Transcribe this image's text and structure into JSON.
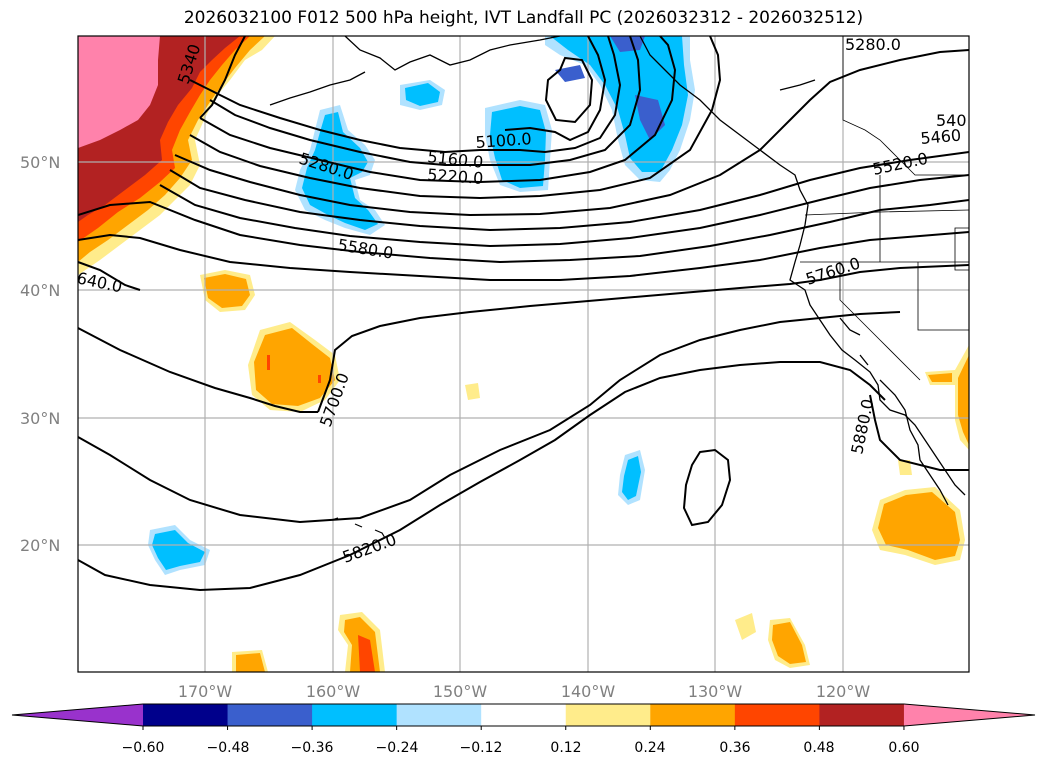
{
  "title": "2026032100 F012 500 hPa height, IVT Landfall PC (2026032312 - 2026032512)",
  "axes": {
    "lat_labels": [
      "50°N",
      "40°N",
      "30°N",
      "20°N"
    ],
    "lon_labels": [
      "170°W",
      "160°W",
      "150°W",
      "140°W",
      "130°W",
      "120°W"
    ]
  },
  "contour_labels": [
    "5280.0",
    "5340",
    "5100.0",
    "5160.0",
    "5220.0",
    "5280.0",
    "540",
    "5460",
    "5520.0",
    "5580.0",
    "640.0",
    "5760.0",
    "5700.0",
    "5880.0",
    "5820.0"
  ],
  "colorbar": {
    "ticks": [
      "−0.60",
      "−0.48",
      "−0.36",
      "−0.24",
      "−0.12",
      "0.12",
      "0.24",
      "0.36",
      "0.48",
      "0.60"
    ],
    "colors": [
      "#9932cc",
      "#00008b",
      "#3a5fcd",
      "#00bfff",
      "#b0e2ff",
      "#ffffff",
      "#ffec8b",
      "#ffa500",
      "#ff4500",
      "#b22222",
      "#ff82ab"
    ]
  },
  "colors": {
    "negative_strong": "#3a5fcd",
    "negative_mid": "#00bfff",
    "negative_weak": "#b0e2ff",
    "positive_weak": "#ffec8b",
    "positive_mid": "#ffa500",
    "positive_high": "#ff4500",
    "positive_higher": "#b22222",
    "positive_max": "#ff82ab"
  }
}
